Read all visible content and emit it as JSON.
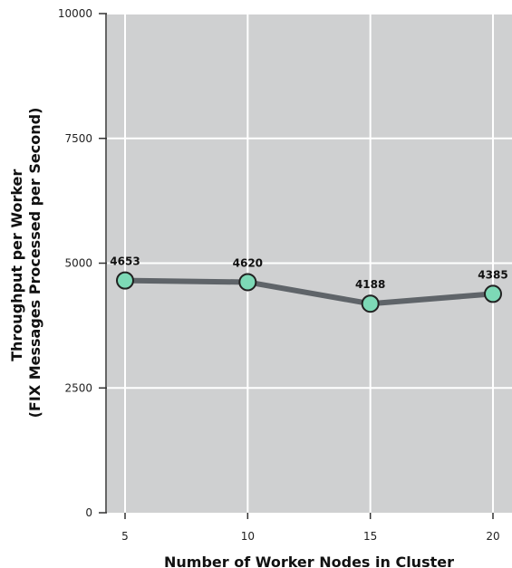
{
  "chart_data": {
    "type": "line",
    "title": "",
    "xlabel": "Number of Worker Nodes in Cluster",
    "ylabel_line1": "Throughput per Worker",
    "ylabel_line2": "(FIX Messages Processed per Second)",
    "x_ticks": [
      "5",
      "10",
      "15",
      "20"
    ],
    "y_ticks": [
      "0",
      "2500",
      "5000",
      "7500",
      "10000"
    ],
    "ylim": [
      0,
      10000
    ],
    "x": [
      5,
      10,
      15,
      20
    ],
    "values": [
      4653,
      4620,
      4188,
      4385
    ],
    "data_labels": [
      "4653",
      "4620",
      "4188",
      "4385"
    ],
    "grid": true,
    "legend": "none",
    "colors": {
      "plot_background": "#cfd0d1",
      "gridline": "#ffffff",
      "line": "#5f6469",
      "marker_fill": "#7dd9b6",
      "marker_stroke": "#222222"
    }
  }
}
